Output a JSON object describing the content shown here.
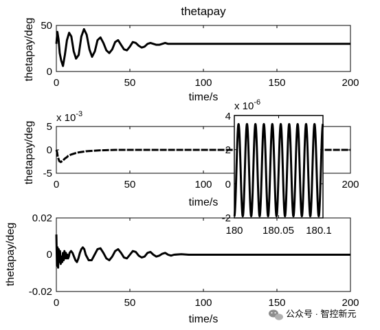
{
  "chart_data": [
    {
      "type": "line",
      "title": "thetapay",
      "xlabel": "time/s",
      "ylabel": "thetapay/deg",
      "xlim": [
        0,
        200
      ],
      "ylim": [
        0,
        50
      ],
      "xticks": [
        "0",
        "50",
        "100",
        "150",
        "200"
      ],
      "yticks": [
        "0",
        "50"
      ],
      "grid": false,
      "series": [
        {
          "description_free": true,
          "x": [
            0,
            0.7,
            1.5,
            2.3,
            3.3,
            4.5,
            5.8,
            7.2,
            8.7,
            10.2,
            11.8,
            13.4,
            15.2,
            17,
            18.8,
            20.6,
            22.5,
            24.3,
            26.2,
            28,
            30,
            32,
            34,
            36,
            38,
            40,
            42,
            44,
            46,
            48,
            50,
            52,
            54,
            56,
            58,
            60,
            62,
            64,
            66,
            68,
            70,
            72,
            74,
            76,
            78,
            80,
            90,
            100,
            120,
            140,
            160,
            180,
            200
          ],
          "values": [
            30,
            43,
            35,
            20,
            12,
            6,
            18,
            34,
            42,
            38,
            22,
            14,
            18,
            38,
            46,
            40,
            24,
            16,
            22,
            34,
            37,
            31,
            23,
            20,
            24,
            32,
            34,
            29,
            24,
            23,
            27,
            32,
            31,
            28,
            26,
            27,
            30,
            31,
            30,
            29,
            29,
            30,
            31,
            30,
            30,
            30,
            30,
            30,
            30,
            30,
            30,
            30,
            30
          ]
        }
      ]
    },
    {
      "type": "line",
      "xlabel": "time/s",
      "ylabel": "thetapay/deg",
      "xlim": [
        0,
        200
      ],
      "ylim": [
        -5,
        5
      ],
      "y_exponent_label": "x 10",
      "y_exponent": "-3",
      "xticks": [
        "0",
        "50",
        "100",
        "150",
        "200"
      ],
      "yticks": [
        "5",
        "0",
        "-5"
      ],
      "grid": false,
      "series": [
        {
          "x": [
            0,
            0.5,
            1,
            2,
            3,
            4,
            5,
            6,
            7,
            8,
            10,
            12,
            14,
            16,
            18,
            20,
            25,
            30,
            40,
            50,
            60,
            80,
            100,
            120,
            140,
            160,
            180,
            200
          ],
          "values": [
            0,
            -0.5,
            -1.5,
            -2.4,
            -2.6,
            -2.4,
            -2.1,
            -1.8,
            -1.6,
            -1.3,
            -1.0,
            -0.8,
            -0.6,
            -0.5,
            -0.4,
            -0.3,
            -0.2,
            -0.1,
            0,
            0,
            0,
            0,
            0,
            0,
            0,
            0,
            0,
            0
          ]
        }
      ]
    },
    {
      "type": "line",
      "inset": true,
      "xlim": [
        180,
        180.1
      ],
      "ylim": [
        -2,
        4
      ],
      "y_exponent_label": "x 10",
      "y_exponent": "-6",
      "xticks": [
        "180",
        "180.05",
        "180.1"
      ],
      "yticks": [
        "4",
        "2",
        "0",
        "-2"
      ],
      "grid": false,
      "series": [
        {
          "waveform": "sinusoid",
          "center": 0.8,
          "amplitude": 2.7,
          "cycles": 10.5
        }
      ]
    },
    {
      "type": "line",
      "xlabel": "time/s",
      "ylabel": "thetapay/deg",
      "xlim": [
        0,
        200
      ],
      "ylim": [
        -0.02,
        0.02
      ],
      "xticks": [
        "0",
        "50",
        "100",
        "150",
        "200"
      ],
      "yticks": [
        "0.02",
        "0",
        "-0.02"
      ],
      "grid": false,
      "series": [
        {
          "x": [
            0,
            0.4,
            0.8,
            1.2,
            1.6,
            2,
            2.5,
            3,
            3.5,
            4,
            4.5,
            5,
            5.5,
            6,
            6.5,
            7,
            7.5,
            8,
            8.5,
            9,
            10,
            11,
            12,
            13,
            14,
            15,
            16,
            17,
            18,
            19,
            20,
            22,
            24,
            26,
            28,
            30,
            32,
            34,
            36,
            38,
            40,
            42,
            44,
            46,
            48,
            50,
            52,
            54,
            56,
            58,
            60,
            62,
            64,
            66,
            68,
            70,
            72,
            74,
            76,
            78,
            80,
            85,
            90,
            95,
            100,
            150,
            200
          ],
          "values": [
            0.011,
            -0.006,
            0.004,
            -0.007,
            0.003,
            -0.004,
            0.002,
            -0.005,
            -0.001,
            -0.004,
            0.001,
            -0.003,
            0.002,
            -0.002,
            0.001,
            -0.002,
            0.0,
            -0.002,
            -0.001,
            0.001,
            0.002,
            0.001,
            -0.001,
            -0.003,
            -0.004,
            -0.002,
            0.001,
            0.003,
            0.004,
            0.003,
            0.0,
            -0.003,
            -0.003,
            0.0,
            0.003,
            0.0035,
            0.001,
            -0.002,
            -0.003,
            -0.001,
            0.002,
            0.003,
            0.001,
            -0.0015,
            -0.002,
            0.0,
            0.002,
            0.0015,
            -0.0005,
            -0.0015,
            -0.001,
            0.001,
            0.0015,
            0.0,
            -0.001,
            -0.0005,
            0.0005,
            0.001,
            0.0,
            -0.0005,
            0.0,
            0.0003,
            0.0,
            0.0,
            0.0,
            0.0,
            0.0
          ]
        }
      ]
    }
  ],
  "watermark": {
    "text": "公众号 · 智控新元",
    "icon": "wechat-icon"
  }
}
